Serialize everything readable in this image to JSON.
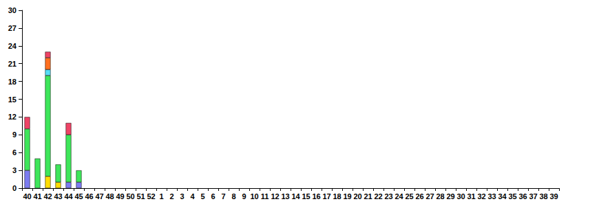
{
  "chart_data": {
    "type": "bar",
    "stacked": true,
    "grid": false,
    "categories": [
      "40",
      "41",
      "42",
      "43",
      "44",
      "45",
      "46",
      "47",
      "48",
      "49",
      "50",
      "51",
      "52",
      "1",
      "2",
      "3",
      "4",
      "5",
      "6",
      "7",
      "8",
      "9",
      "10",
      "11",
      "12",
      "13",
      "14",
      "15",
      "16",
      "17",
      "18",
      "19",
      "20",
      "21",
      "22",
      "23",
      "24",
      "25",
      "26",
      "27",
      "28",
      "29",
      "30",
      "31",
      "32",
      "33",
      "34",
      "35",
      "36",
      "37",
      "38",
      "39"
    ],
    "ylim": [
      0,
      30
    ],
    "yticks": [
      0,
      3,
      6,
      9,
      12,
      15,
      18,
      21,
      24,
      27,
      30
    ],
    "series": [
      {
        "color": "#7c7cf0",
        "values": [
          3,
          null,
          null,
          null,
          1,
          1,
          null,
          null,
          null,
          null,
          null,
          null,
          null,
          null,
          null,
          null,
          null,
          null,
          null,
          null,
          null,
          null,
          null,
          null,
          null,
          null,
          null,
          null,
          null,
          null,
          null,
          null,
          null,
          null,
          null,
          null,
          null,
          null,
          null,
          null,
          null,
          null,
          null,
          null,
          null,
          null,
          null,
          null,
          null,
          null,
          null,
          null
        ]
      },
      {
        "color": "#ffdd00",
        "values": [
          null,
          null,
          2,
          1,
          null,
          null,
          null,
          null,
          null,
          null,
          null,
          null,
          null,
          null,
          null,
          null,
          null,
          null,
          null,
          null,
          null,
          null,
          null,
          null,
          null,
          null,
          null,
          null,
          null,
          null,
          null,
          null,
          null,
          null,
          null,
          null,
          null,
          null,
          null,
          null,
          null,
          null,
          null,
          null,
          null,
          null,
          null,
          null,
          null,
          null,
          null,
          null
        ]
      },
      {
        "color": "#3ee65a",
        "values": [
          7,
          5,
          17,
          3,
          8,
          2,
          null,
          null,
          null,
          null,
          null,
          null,
          null,
          null,
          null,
          null,
          null,
          null,
          null,
          null,
          null,
          null,
          null,
          null,
          null,
          null,
          null,
          null,
          null,
          null,
          null,
          null,
          null,
          null,
          null,
          null,
          null,
          null,
          null,
          null,
          null,
          null,
          null,
          null,
          null,
          null,
          null,
          null,
          null,
          null,
          null,
          null
        ]
      },
      {
        "color": "#55ddf5",
        "values": [
          null,
          null,
          1,
          null,
          null,
          null,
          null,
          null,
          null,
          null,
          null,
          null,
          null,
          null,
          null,
          null,
          null,
          null,
          null,
          null,
          null,
          null,
          null,
          null,
          null,
          null,
          null,
          null,
          null,
          null,
          null,
          null,
          null,
          null,
          null,
          null,
          null,
          null,
          null,
          null,
          null,
          null,
          null,
          null,
          null,
          null,
          null,
          null,
          null,
          null,
          null,
          null
        ]
      },
      {
        "color": "#ff7020",
        "values": [
          null,
          null,
          2,
          null,
          null,
          null,
          null,
          null,
          null,
          null,
          null,
          null,
          null,
          null,
          null,
          null,
          null,
          null,
          null,
          null,
          null,
          null,
          null,
          null,
          null,
          null,
          null,
          null,
          null,
          null,
          null,
          null,
          null,
          null,
          null,
          null,
          null,
          null,
          null,
          null,
          null,
          null,
          null,
          null,
          null,
          null,
          null,
          null,
          null,
          null,
          null,
          null
        ]
      },
      {
        "color": "#ee4466",
        "values": [
          2,
          null,
          1,
          null,
          2,
          null,
          null,
          null,
          null,
          null,
          null,
          null,
          null,
          null,
          null,
          null,
          null,
          null,
          null,
          null,
          null,
          null,
          null,
          null,
          null,
          null,
          null,
          null,
          null,
          null,
          null,
          null,
          null,
          null,
          null,
          null,
          null,
          null,
          null,
          null,
          null,
          null,
          null,
          null,
          null,
          null,
          null,
          null,
          null,
          null,
          null,
          null
        ]
      }
    ]
  }
}
